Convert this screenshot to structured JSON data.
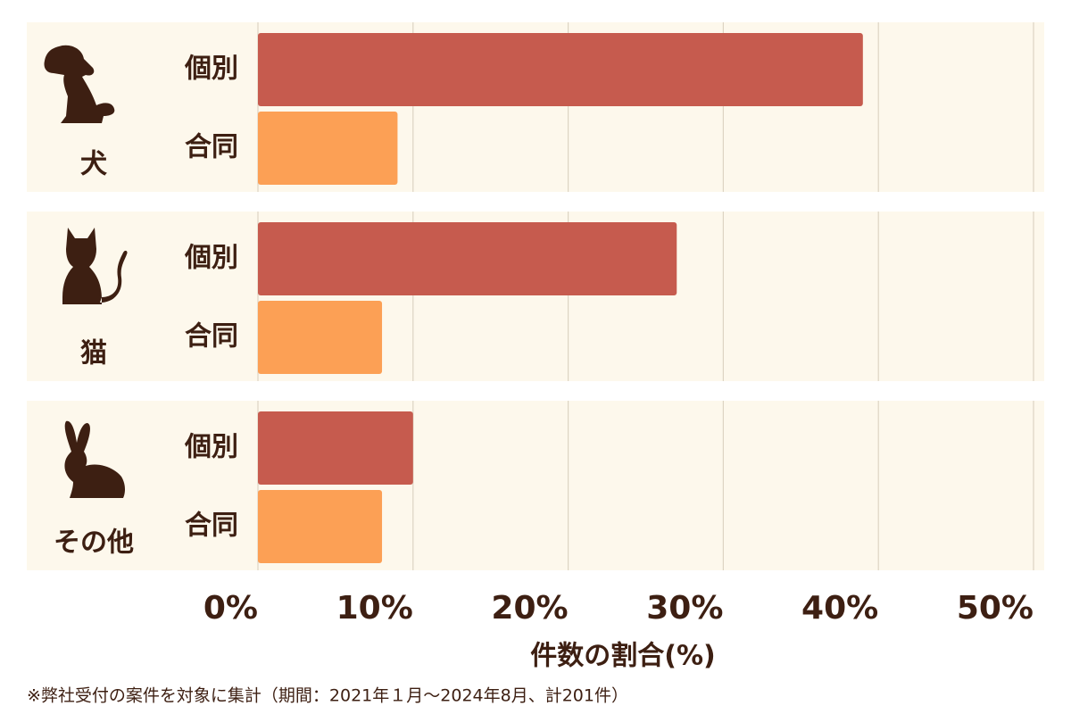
{
  "chart_data": {
    "type": "hbar",
    "categories": [
      "犬",
      "猫",
      "その他"
    ],
    "series": [
      {
        "name": "個別",
        "color": "#c65b4e",
        "values": [
          39,
          27,
          10
        ]
      },
      {
        "name": "合同",
        "color": "#fca055",
        "values": [
          9,
          8,
          8
        ]
      }
    ],
    "xlim": [
      0,
      50
    ],
    "xticks": [
      {
        "value": 0,
        "label": "0%"
      },
      {
        "value": 10,
        "label": "10%"
      },
      {
        "value": 20,
        "label": "20%"
      },
      {
        "value": 30,
        "label": "30%"
      },
      {
        "value": 40,
        "label": "40%"
      },
      {
        "value": 50,
        "label": "50%"
      }
    ],
    "xlabel": "件数の割合(%)",
    "footnote": "※弊社受付の案件を対象に集計（期間：2021年１月～2024年8月、計201件）",
    "grid": true
  }
}
